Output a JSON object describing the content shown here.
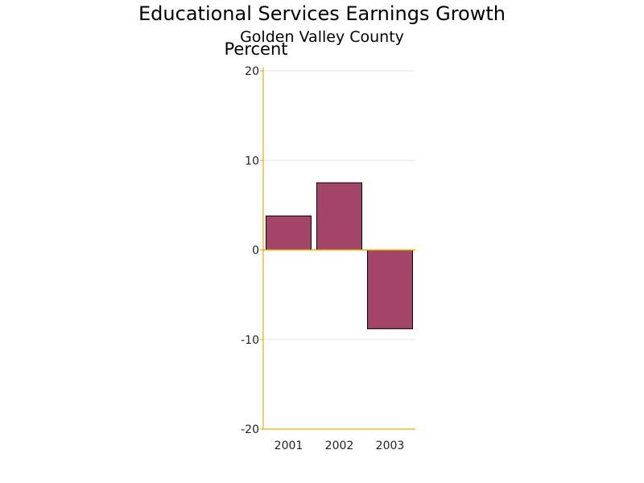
{
  "chart_data": {
    "type": "bar",
    "title": "Educational Services Earnings Growth",
    "subtitle": "Golden Valley County",
    "ylabel": "Percent",
    "xlabel": "",
    "categories": [
      "2001",
      "2002",
      "2003"
    ],
    "values": [
      3.8,
      7.5,
      -8.8
    ],
    "ylim": [
      -20,
      20
    ],
    "yticks": [
      -20,
      -10,
      0,
      10,
      20
    ],
    "grid": true,
    "legend": "none",
    "colors": {
      "bar": "#a34468",
      "bar_outline": "#000000",
      "axis": "#e3b000",
      "grid": "#e6e6e6"
    }
  }
}
